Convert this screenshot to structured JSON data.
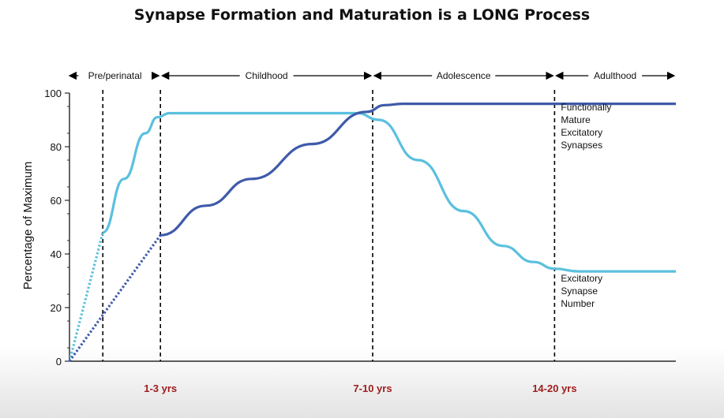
{
  "title": "Synapse Formation and Maturation is a LONG Process",
  "chart_data": {
    "type": "line",
    "ylabel": "Percentage of Maximum",
    "xlabel": "",
    "ylim": [
      0,
      100
    ],
    "yticks": [
      0,
      20,
      40,
      60,
      80,
      100
    ],
    "periods": [
      {
        "label": "Pre/perinatal",
        "from": 0,
        "to": 3
      },
      {
        "label": "Childhood",
        "from": 3,
        "to": 10
      },
      {
        "label": "Adolescence",
        "from": 10,
        "to": 16
      },
      {
        "label": "Adulthood",
        "from": 16,
        "to": 20
      }
    ],
    "age_markers": [
      {
        "label": "1-3 yrs",
        "x": 3
      },
      {
        "label": "7-10 yrs",
        "x": 10
      },
      {
        "label": "14-20 yrs",
        "x": 16
      }
    ],
    "extra_dashed_x": [
      1.1
    ],
    "xlim": [
      0,
      20
    ],
    "series": [
      {
        "name": "Excitatory Synapse Number",
        "label_lines": [
          "Excitatory",
          "Synapse",
          "Number"
        ],
        "color": "#5bc0de",
        "dotted": [
          [
            0,
            0
          ],
          [
            1.1,
            48
          ]
        ],
        "solid": [
          [
            1.1,
            48
          ],
          [
            1.8,
            68
          ],
          [
            2.5,
            85
          ],
          [
            2.9,
            91
          ],
          [
            3.3,
            92.5
          ],
          [
            9.5,
            92.5
          ],
          [
            10.2,
            90
          ],
          [
            11.5,
            75
          ],
          [
            13,
            56
          ],
          [
            14.3,
            43
          ],
          [
            15.3,
            37
          ],
          [
            16,
            34.5
          ],
          [
            16.8,
            33.5
          ],
          [
            20,
            33.5
          ]
        ]
      },
      {
        "name": "Functionally Mature Excitatory Synapses",
        "label_lines": [
          "Functionally",
          "Mature",
          "Excitatory",
          "Synapses"
        ],
        "color": "#3f5aa9",
        "dotted": [
          [
            0,
            0
          ],
          [
            3,
            47
          ]
        ],
        "solid": [
          [
            3,
            47
          ],
          [
            4.5,
            58
          ],
          [
            6,
            68
          ],
          [
            8,
            81
          ],
          [
            9.8,
            93
          ],
          [
            10.4,
            95.5
          ],
          [
            11,
            96
          ],
          [
            20,
            96
          ]
        ]
      }
    ],
    "accent_color": "#a01c1c"
  }
}
